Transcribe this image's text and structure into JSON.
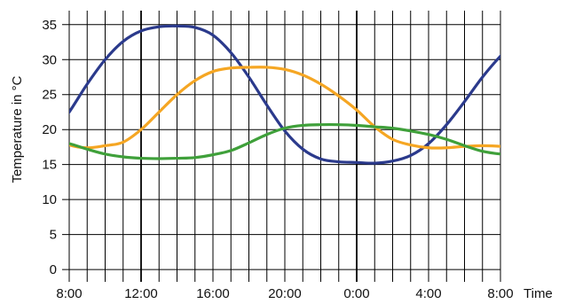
{
  "chart_data": {
    "type": "line",
    "title": "",
    "xlabel": "Time",
    "ylabel": "Temperature in °C",
    "x_tick_labels": [
      "8:00",
      "12:00",
      "16:00",
      "20:00",
      "0:00",
      "4:00",
      "8:00"
    ],
    "x_tick_hours": [
      8,
      12,
      16,
      20,
      24,
      28,
      32
    ],
    "y_ticks": [
      0,
      5,
      10,
      15,
      20,
      25,
      30,
      35
    ],
    "xlim_hours": [
      8,
      32
    ],
    "ylim": [
      -1,
      37
    ],
    "grid": true,
    "legend": "none",
    "x_hours": [
      7,
      8,
      9,
      10,
      11,
      12,
      13,
      14,
      15,
      16,
      17,
      18,
      19,
      20,
      21,
      22,
      23,
      24,
      25,
      26,
      27,
      28,
      29,
      30,
      31,
      32,
      33
    ],
    "series": [
      {
        "color": "#2b3a8c",
        "values": [
          19,
          22.5,
          26.5,
          30,
          32.6,
          34.1,
          34.7,
          34.8,
          34.6,
          33.5,
          31.0,
          27.5,
          23.5,
          19.8,
          17.2,
          15.8,
          15.4,
          15.3,
          15.2,
          15.5,
          16.3,
          18.0,
          20.7,
          24.0,
          27.5,
          30.5,
          33.0
        ]
      },
      {
        "color": "#f5a623",
        "values": [
          19,
          17.8,
          17.4,
          17.7,
          18.2,
          20.0,
          22.5,
          25.0,
          27.0,
          28.3,
          28.8,
          28.9,
          28.9,
          28.6,
          27.8,
          26.5,
          24.8,
          22.8,
          20.4,
          18.6,
          17.8,
          17.4,
          17.4,
          17.6,
          17.7,
          17.6,
          17.2
        ]
      },
      {
        "color": "#3fa03a",
        "values": [
          18.5,
          18.0,
          17.2,
          16.5,
          16.1,
          15.9,
          15.85,
          15.9,
          16.0,
          16.4,
          17.0,
          18.1,
          19.3,
          20.2,
          20.6,
          20.7,
          20.7,
          20.6,
          20.4,
          20.2,
          19.8,
          19.3,
          18.6,
          17.7,
          16.9,
          16.5,
          16.3
        ]
      }
    ]
  }
}
